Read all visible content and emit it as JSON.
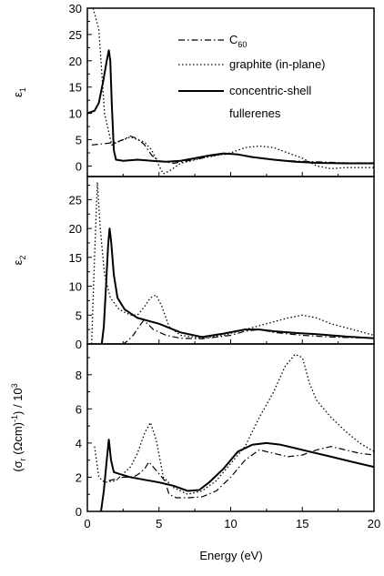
{
  "chart_data": {
    "type": "line",
    "xlabel": "Energy (eV)",
    "xlim": [
      0,
      20
    ],
    "xticks": [
      "0",
      "5",
      "10",
      "15",
      "20"
    ],
    "legend": {
      "placement": "top-right",
      "entries": [
        {
          "series": "C60",
          "label_main": "C",
          "label_sub": "60"
        },
        {
          "series": "graphite (in-plane)",
          "label_main": "graphite (in-plane)",
          "label_sub": ""
        },
        {
          "series": "concentric-shell fullerenes",
          "label_main": "concentric-shell",
          "label_line2": "fullerenes",
          "label_sub": ""
        }
      ]
    },
    "panels": [
      {
        "id": "eps1",
        "ylabel_main": "ε",
        "ylabel_sub": "1",
        "ylim": [
          -2,
          30
        ],
        "yticks": [
          "0",
          "5",
          "10",
          "15",
          "20",
          "25",
          "30"
        ],
        "series": [
          {
            "name": "C60",
            "style": "dash-dot",
            "points": [
              [
                0.3,
                4.0
              ],
              [
                1,
                4.2
              ],
              [
                2,
                4.5
              ],
              [
                2.5,
                5.0
              ],
              [
                3,
                5.7
              ],
              [
                3.5,
                5.2
              ],
              [
                4,
                4.0
              ],
              [
                4.5,
                2.0
              ],
              [
                5,
                1.0
              ],
              [
                6,
                0.5
              ],
              [
                7,
                1.0
              ],
              [
                8,
                1.5
              ],
              [
                9,
                2.1
              ],
              [
                10,
                2.3
              ],
              [
                11,
                2.0
              ],
              [
                12,
                1.5
              ],
              [
                14,
                1.0
              ],
              [
                16,
                0.8
              ],
              [
                18,
                0.6
              ],
              [
                20,
                0.6
              ]
            ]
          },
          {
            "name": "graphite (in-plane)",
            "style": "dotted",
            "points": [
              [
                0.4,
                30
              ],
              [
                0.8,
                26
              ],
              [
                1.2,
                10
              ],
              [
                1.7,
                4
              ],
              [
                2.5,
                5.0
              ],
              [
                3,
                5.5
              ],
              [
                3.5,
                5.0
              ],
              [
                4,
                4.5
              ],
              [
                4.5,
                3.0
              ],
              [
                5,
                0.0
              ],
              [
                5.3,
                -1.5
              ],
              [
                5.7,
                -1.0
              ],
              [
                6.5,
                0.5
              ],
              [
                8,
                1.5
              ],
              [
                9,
                2.0
              ],
              [
                10,
                2.5
              ],
              [
                11,
                3.5
              ],
              [
                12,
                3.8
              ],
              [
                13,
                3.5
              ],
              [
                14,
                2.5
              ],
              [
                15,
                1.5
              ],
              [
                16,
                0.0
              ],
              [
                17,
                -0.5
              ],
              [
                18,
                -0.3
              ],
              [
                20,
                -0.3
              ]
            ]
          },
          {
            "name": "concentric-shell fullerenes",
            "style": "solid",
            "points": [
              [
                0,
                10
              ],
              [
                0.5,
                10.5
              ],
              [
                0.8,
                12
              ],
              [
                1.1,
                16
              ],
              [
                1.35,
                20
              ],
              [
                1.5,
                22
              ],
              [
                1.6,
                20
              ],
              [
                1.7,
                12
              ],
              [
                1.85,
                3
              ],
              [
                2,
                1.2
              ],
              [
                2.5,
                1.0
              ],
              [
                3.5,
                1.2
              ],
              [
                4.5,
                1.0
              ],
              [
                5.5,
                0.8
              ],
              [
                6.5,
                1.0
              ],
              [
                7.5,
                1.5
              ],
              [
                8.5,
                2.0
              ],
              [
                9.5,
                2.4
              ],
              [
                10.5,
                2.2
              ],
              [
                11.5,
                1.7
              ],
              [
                13,
                1.2
              ],
              [
                14.5,
                0.8
              ],
              [
                16,
                0.6
              ],
              [
                18,
                0.5
              ],
              [
                20,
                0.5
              ]
            ]
          }
        ]
      },
      {
        "id": "eps2",
        "ylabel_main": "ε",
        "ylabel_sub": "2",
        "ylim": [
          0,
          29
        ],
        "yticks": [
          "0",
          "5",
          "10",
          "15",
          "20",
          "25"
        ],
        "series": [
          {
            "name": "C60",
            "style": "dash-dot",
            "points": [
              [
                1.5,
                0
              ],
              [
                2,
                0
              ],
              [
                2.5,
                0
              ],
              [
                2.8,
                0.5
              ],
              [
                3.2,
                1.5
              ],
              [
                3.6,
                3.0
              ],
              [
                3.9,
                4.0
              ],
              [
                4.2,
                3.5
              ],
              [
                4.6,
                2.5
              ],
              [
                5.5,
                1.5
              ],
              [
                6.5,
                1.0
              ],
              [
                8,
                0.9
              ],
              [
                10,
                1.5
              ],
              [
                11,
                2.2
              ],
              [
                12,
                2.5
              ],
              [
                13,
                2.0
              ],
              [
                15,
                1.5
              ],
              [
                17,
                1.2
              ],
              [
                20,
                1.0
              ]
            ]
          },
          {
            "name": "graphite (in-plane)",
            "style": "dotted",
            "points": [
              [
                0.3,
                0
              ],
              [
                0.5,
                15
              ],
              [
                0.7,
                28
              ],
              [
                0.9,
                20
              ],
              [
                1.2,
                12
              ],
              [
                1.6,
                8
              ],
              [
                2.2,
                6.0
              ],
              [
                3,
                5.0
              ],
              [
                3.5,
                5.0
              ],
              [
                4,
                6.5
              ],
              [
                4.4,
                8.0
              ],
              [
                4.8,
                8.5
              ],
              [
                5.2,
                6.5
              ],
              [
                5.7,
                3.0
              ],
              [
                6.5,
                1.5
              ],
              [
                8,
                1.0
              ],
              [
                9.5,
                1.5
              ],
              [
                11,
                2.5
              ],
              [
                12.5,
                3.5
              ],
              [
                14,
                4.5
              ],
              [
                15,
                5.0
              ],
              [
                16,
                4.5
              ],
              [
                17,
                3.5
              ],
              [
                18.5,
                2.5
              ],
              [
                20,
                1.5
              ]
            ]
          },
          {
            "name": "concentric-shell fullerenes",
            "style": "solid",
            "points": [
              [
                1,
                0
              ],
              [
                1.15,
                3
              ],
              [
                1.3,
                10
              ],
              [
                1.45,
                17
              ],
              [
                1.55,
                20
              ],
              [
                1.65,
                18
              ],
              [
                1.85,
                12
              ],
              [
                2.1,
                8
              ],
              [
                2.6,
                6
              ],
              [
                3.5,
                4.5
              ],
              [
                5,
                3.5
              ],
              [
                6.5,
                2.0
              ],
              [
                8,
                1.2
              ],
              [
                9.5,
                1.8
              ],
              [
                11,
                2.5
              ],
              [
                12,
                2.5
              ],
              [
                13,
                2.2
              ],
              [
                14.5,
                1.9
              ],
              [
                16,
                1.7
              ],
              [
                18,
                1.3
              ],
              [
                20,
                1.0
              ]
            ]
          }
        ]
      },
      {
        "id": "sigma",
        "ylabel_main": "(σ",
        "ylabel_sub": "r",
        "ylabel_rest": " (Ωcm)",
        "ylabel_sup": "-1",
        "ylabel_end": ") / 10",
        "ylabel_sup2": "3",
        "ylim": [
          0,
          9.8
        ],
        "yticks": [
          "0",
          "2",
          "4",
          "6",
          "8"
        ],
        "series": [
          {
            "name": "C60",
            "style": "dash-dot",
            "points": [
              [
                1.5,
                1.8
              ],
              [
                2.5,
                2.0
              ],
              [
                3.2,
                2.0
              ],
              [
                3.6,
                2.2
              ],
              [
                4,
                2.5
              ],
              [
                4.3,
                2.9
              ],
              [
                4.6,
                2.6
              ],
              [
                5,
                2.2
              ],
              [
                5.4,
                1.8
              ],
              [
                5.7,
                1.0
              ],
              [
                6.2,
                0.8
              ],
              [
                7,
                0.8
              ],
              [
                8,
                0.85
              ],
              [
                9,
                1.2
              ],
              [
                10,
                2.0
              ],
              [
                11,
                3.0
              ],
              [
                12,
                3.6
              ],
              [
                13,
                3.4
              ],
              [
                14,
                3.2
              ],
              [
                15,
                3.3
              ],
              [
                16,
                3.6
              ],
              [
                17,
                3.8
              ],
              [
                18,
                3.6
              ],
              [
                19,
                3.4
              ],
              [
                20,
                3.3
              ]
            ]
          },
          {
            "name": "graphite (in-plane)",
            "style": "dotted",
            "points": [
              [
                0.5,
                3.8
              ],
              [
                0.8,
                2.0
              ],
              [
                1.2,
                1.7
              ],
              [
                2,
                1.8
              ],
              [
                3,
                2.6
              ],
              [
                3.5,
                3.4
              ],
              [
                4,
                4.6
              ],
              [
                4.4,
                5.2
              ],
              [
                4.8,
                4.2
              ],
              [
                5.3,
                2.0
              ],
              [
                6,
                1.4
              ],
              [
                7,
                1.0
              ],
              [
                8,
                1.2
              ],
              [
                9,
                1.8
              ],
              [
                10,
                2.8
              ],
              [
                11,
                3.8
              ],
              [
                12,
                5.5
              ],
              [
                13,
                7.0
              ],
              [
                13.8,
                8.5
              ],
              [
                14.5,
                9.2
              ],
              [
                15,
                9.0
              ],
              [
                15.5,
                7.5
              ],
              [
                16,
                6.5
              ],
              [
                17,
                5.5
              ],
              [
                18,
                4.7
              ],
              [
                19,
                4.0
              ],
              [
                20,
                3.5
              ]
            ]
          },
          {
            "name": "concentric-shell fullerenes",
            "style": "solid",
            "points": [
              [
                0.95,
                0
              ],
              [
                1.15,
                1.2
              ],
              [
                1.35,
                3.0
              ],
              [
                1.5,
                4.2
              ],
              [
                1.65,
                3.0
              ],
              [
                1.85,
                2.3
              ],
              [
                2.2,
                2.2
              ],
              [
                3,
                2.0
              ],
              [
                4,
                1.85
              ],
              [
                5,
                1.7
              ],
              [
                6,
                1.5
              ],
              [
                7,
                1.2
              ],
              [
                7.8,
                1.25
              ],
              [
                8.5,
                1.7
              ],
              [
                9.5,
                2.5
              ],
              [
                10.5,
                3.5
              ],
              [
                11.5,
                3.9
              ],
              [
                12.5,
                4.0
              ],
              [
                13.5,
                3.9
              ],
              [
                14.5,
                3.7
              ],
              [
                15.5,
                3.5
              ],
              [
                17,
                3.2
              ],
              [
                18.5,
                2.9
              ],
              [
                20,
                2.6
              ]
            ]
          }
        ]
      }
    ]
  }
}
